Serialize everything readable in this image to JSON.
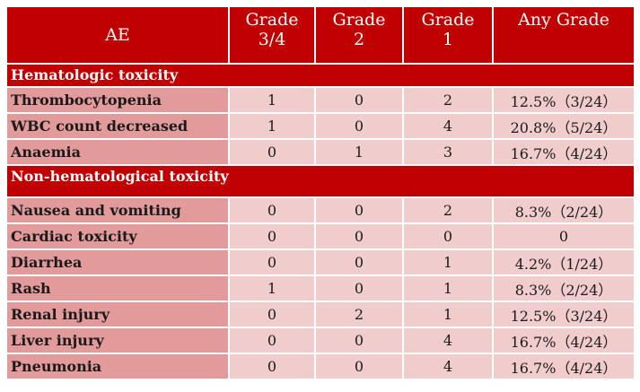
{
  "header": {
    "ae": "AE",
    "grade34": [
      "Grade",
      "3/4"
    ],
    "grade2": [
      "Grade",
      "2"
    ],
    "grade1": [
      "Grade",
      "1"
    ],
    "any": "Any Grade"
  },
  "sections": [
    {
      "title": "Hematologic toxicity",
      "rows": [
        {
          "ae": "Thrombocytopenia",
          "g34": "1",
          "g2": "0",
          "g1": "2",
          "any": "12.5%（3/24）"
        },
        {
          "ae": "WBC count decreased",
          "g34": "1",
          "g2": "0",
          "g1": "4",
          "any": "20.8%（5/24）"
        },
        {
          "ae": "Anaemia",
          "g34": "0",
          "g2": "1",
          "g1": "3",
          "any": "16.7%（4/24）"
        }
      ]
    },
    {
      "title": "Non-hematological toxicity",
      "rows": [
        {
          "ae": "Nausea and vomiting",
          "g34": "0",
          "g2": "0",
          "g1": "2",
          "any": "8.3%（2/24）"
        },
        {
          "ae": "Cardiac toxicity",
          "g34": "0",
          "g2": "0",
          "g1": "0",
          "any": "0"
        },
        {
          "ae": "Diarrhea",
          "g34": "0",
          "g2": "0",
          "g1": "1",
          "any": "4.2%（1/24）"
        },
        {
          "ae": "Rash",
          "g34": "1",
          "g2": "0",
          "g1": "1",
          "any": "8.3%（2/24）"
        },
        {
          "ae": "Renal injury",
          "g34": "0",
          "g2": "2",
          "g1": "1",
          "any": "12.5%（3/24）"
        },
        {
          "ae": "Liver injury",
          "g34": "0",
          "g2": "0",
          "g1": "4",
          "any": "16.7%（4/24）"
        },
        {
          "ae": "Pneumonia",
          "g34": "0",
          "g2": "0",
          "g1": "4",
          "any": "16.7%（4/24）"
        }
      ]
    }
  ]
}
